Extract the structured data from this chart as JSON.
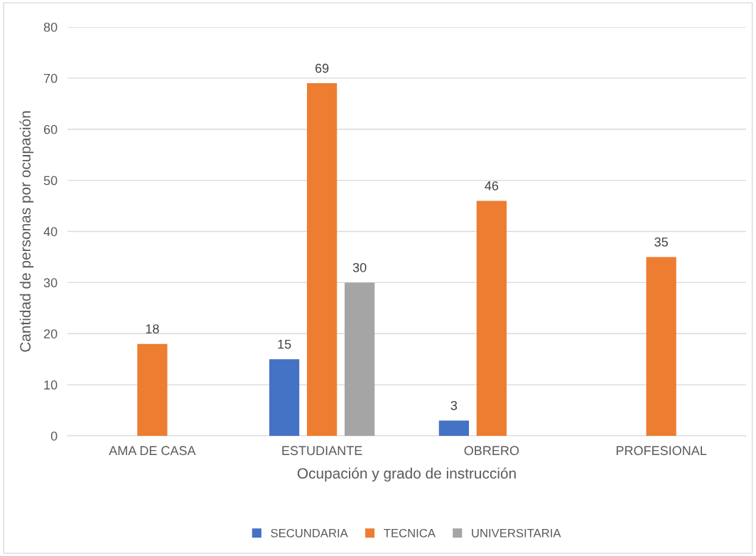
{
  "chart_data": {
    "type": "bar",
    "xlabel": "Ocupación y grado de instrucción",
    "ylabel": "Cantidad de personas por ocupación",
    "categories": [
      "AMA DE CASA",
      "ESTUDIANTE",
      "OBRERO",
      "PROFESIONAL"
    ],
    "series": [
      {
        "name": "SECUNDARIA",
        "color": "#4472c4",
        "values": [
          null,
          15,
          3,
          null
        ]
      },
      {
        "name": "TECNICA",
        "color": "#ed7d31",
        "values": [
          18,
          69,
          46,
          35
        ]
      },
      {
        "name": "UNIVERSITARIA",
        "color": "#a5a5a5",
        "values": [
          null,
          30,
          null,
          null
        ]
      }
    ],
    "ylim": [
      0,
      80
    ],
    "yticks": [
      0,
      10,
      20,
      30,
      40,
      50,
      60,
      70,
      80
    ],
    "grid": "y",
    "legend": "bottom",
    "data_labels": true
  }
}
